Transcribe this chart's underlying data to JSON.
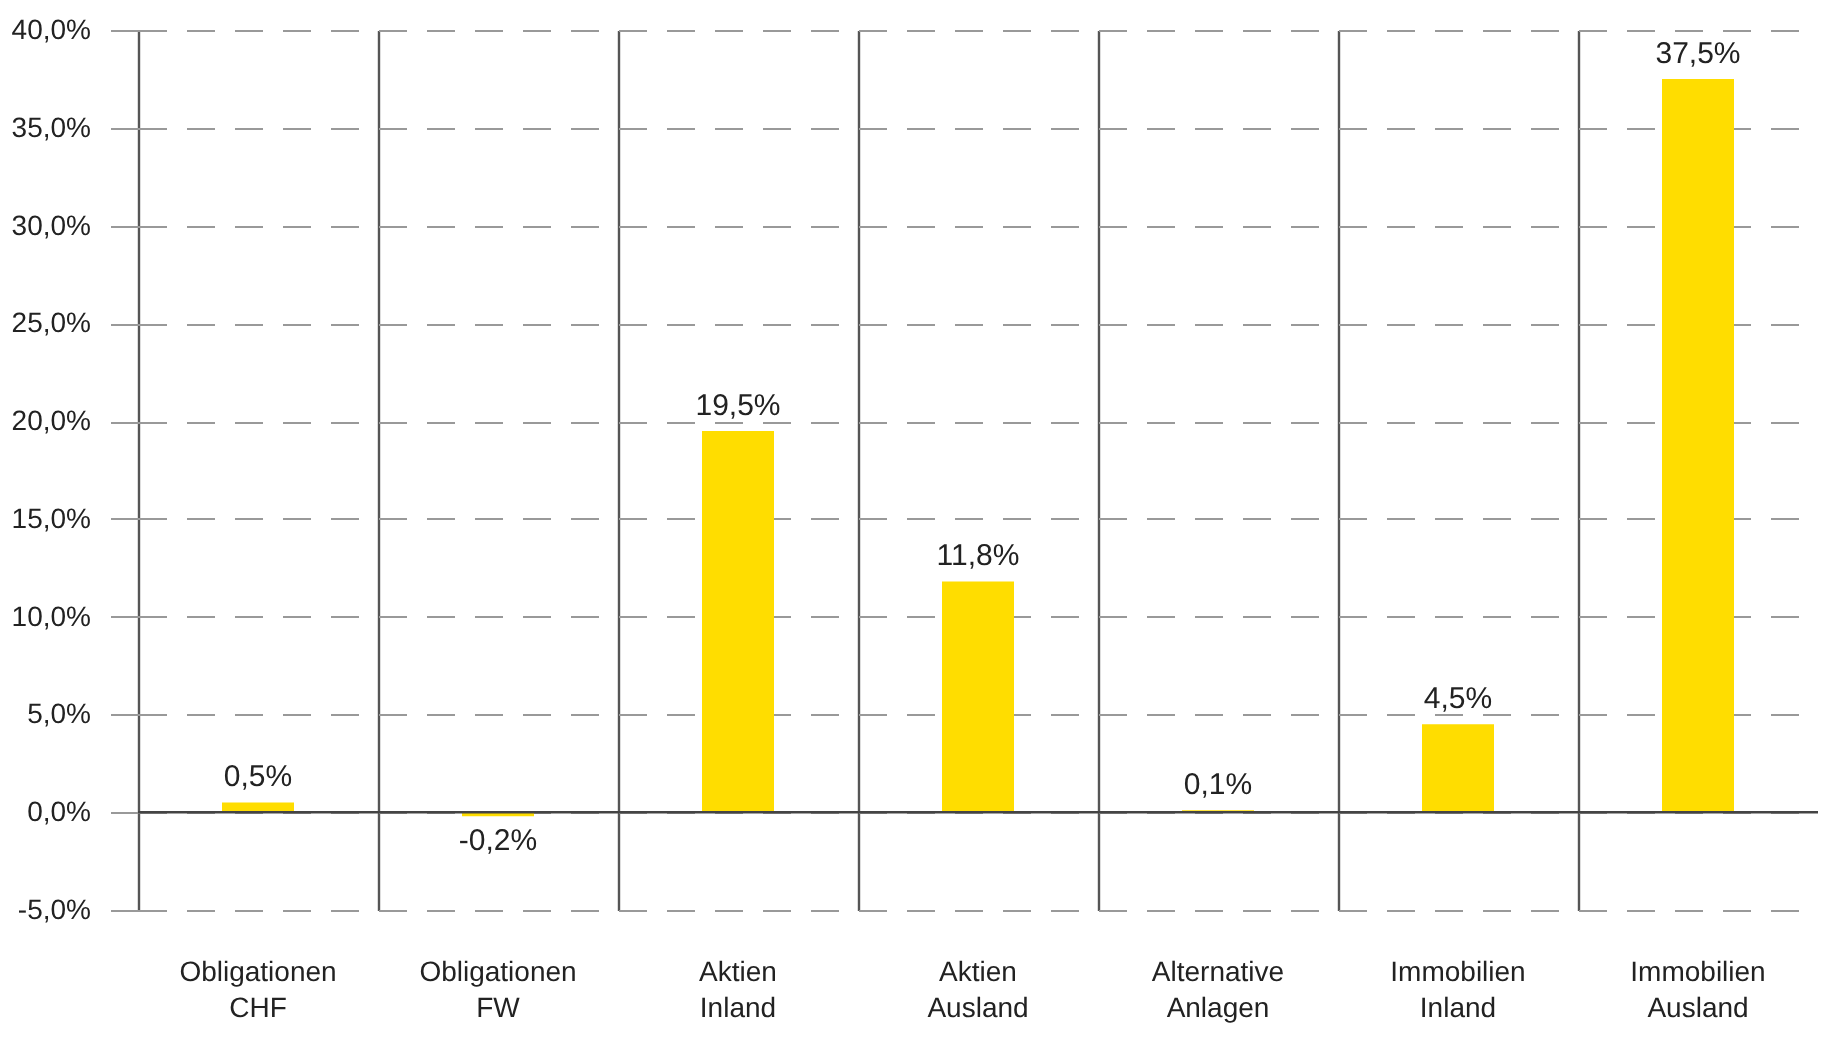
{
  "chart_data": {
    "type": "bar",
    "categories": [
      "Obligationen CHF",
      "Obligationen FW",
      "Aktien Inland",
      "Aktien Ausland",
      "Alternative Anlagen",
      "Immobilien Inland",
      "Immobilien Ausland"
    ],
    "values": [
      0.5,
      -0.2,
      19.5,
      11.8,
      0.1,
      4.5,
      37.5
    ],
    "value_labels": [
      "0,5%",
      "-0,2%",
      "19,5%",
      "11,8%",
      "0,1%",
      "4,5%",
      "37,5%"
    ],
    "color": "#ffdd00",
    "ylim": [
      -5,
      40
    ],
    "yticks": [
      {
        "value": -5,
        "label": "-5,0%"
      },
      {
        "value": 0,
        "label": "0,0%"
      },
      {
        "value": 5,
        "label": "5,0%"
      },
      {
        "value": 10,
        "label": "10,0%"
      },
      {
        "value": 15,
        "label": "15,0%"
      },
      {
        "value": 20,
        "label": "20,0%"
      },
      {
        "value": 25,
        "label": "25,0%"
      },
      {
        "value": 30,
        "label": "30,0%"
      },
      {
        "value": 35,
        "label": "35,0%"
      },
      {
        "value": 40,
        "label": "40,0%"
      }
    ],
    "grid": true
  }
}
